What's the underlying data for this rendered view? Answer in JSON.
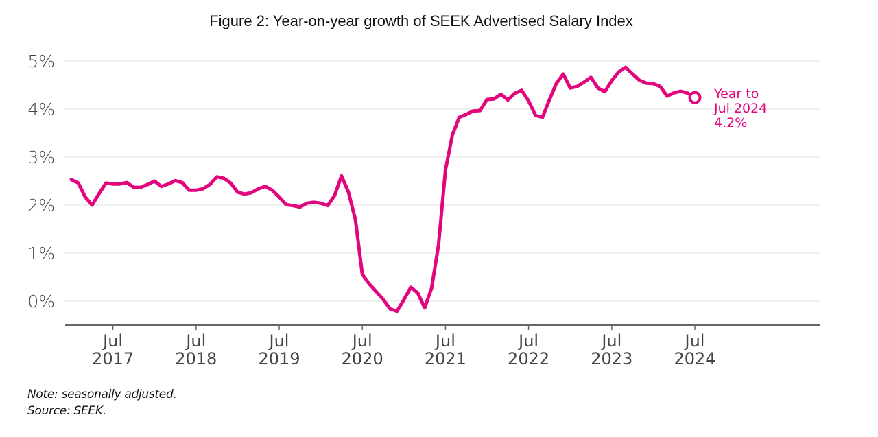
{
  "chart_data": {
    "type": "line",
    "title": "Figure 2: Year-on-year growth of SEEK Advertised Salary Index",
    "xlabel": "",
    "ylabel": "",
    "ylim": [
      -0.5,
      5
    ],
    "yticks": [
      0,
      1,
      2,
      3,
      4,
      5
    ],
    "ytick_labels": [
      "0%",
      "1%",
      "2%",
      "3%",
      "4%",
      "5%"
    ],
    "xticks": [
      {
        "month_index": 6,
        "line1": "Jul",
        "line2": "2017"
      },
      {
        "month_index": 18,
        "line1": "Jul",
        "line2": "2018"
      },
      {
        "month_index": 30,
        "line1": "Jul",
        "line2": "2019"
      },
      {
        "month_index": 42,
        "line1": "Jul",
        "line2": "2020"
      },
      {
        "month_index": 54,
        "line1": "Jul",
        "line2": "2021"
      },
      {
        "month_index": 66,
        "line1": "Jul",
        "line2": "2022"
      },
      {
        "month_index": 78,
        "line1": "Jul",
        "line2": "2023"
      },
      {
        "month_index": 90,
        "line1": "Jul",
        "line2": "2024"
      }
    ],
    "x_start": "Jan 2017",
    "x_end": "Jul 2024",
    "x_frequency": "monthly",
    "grid": "horizontal",
    "series": [
      {
        "name": "Year-on-year growth of SEEK Advertised Salary Index (%)",
        "color": "#e2067e",
        "values": [
          2.53,
          2.46,
          2.17,
          2.0,
          2.24,
          2.46,
          2.44,
          2.44,
          2.47,
          2.37,
          2.37,
          2.43,
          2.5,
          2.39,
          2.44,
          2.51,
          2.47,
          2.31,
          2.31,
          2.34,
          2.43,
          2.59,
          2.56,
          2.46,
          2.27,
          2.23,
          2.26,
          2.34,
          2.39,
          2.31,
          2.17,
          2.01,
          1.99,
          1.96,
          2.04,
          2.06,
          2.04,
          1.99,
          2.2,
          2.61,
          2.27,
          1.7,
          0.56,
          0.36,
          0.2,
          0.04,
          -0.16,
          -0.21,
          0.03,
          0.29,
          0.17,
          -0.14,
          0.27,
          1.17,
          2.73,
          3.46,
          3.83,
          3.89,
          3.96,
          3.97,
          4.2,
          4.21,
          4.31,
          4.19,
          4.33,
          4.39,
          4.17,
          3.87,
          3.83,
          4.19,
          4.53,
          4.73,
          4.44,
          4.47,
          4.56,
          4.66,
          4.44,
          4.36,
          4.59,
          4.77,
          4.87,
          4.73,
          4.6,
          4.54,
          4.53,
          4.47,
          4.27,
          4.34,
          4.37,
          4.33,
          4.24
        ]
      }
    ],
    "annotation": {
      "lines": [
        "Year to",
        "Jul 2024",
        "4.2%"
      ],
      "value": 4.2,
      "point": "last"
    }
  },
  "footer": {
    "note": "Note: seasonally adjusted.",
    "source": "Source: SEEK."
  }
}
